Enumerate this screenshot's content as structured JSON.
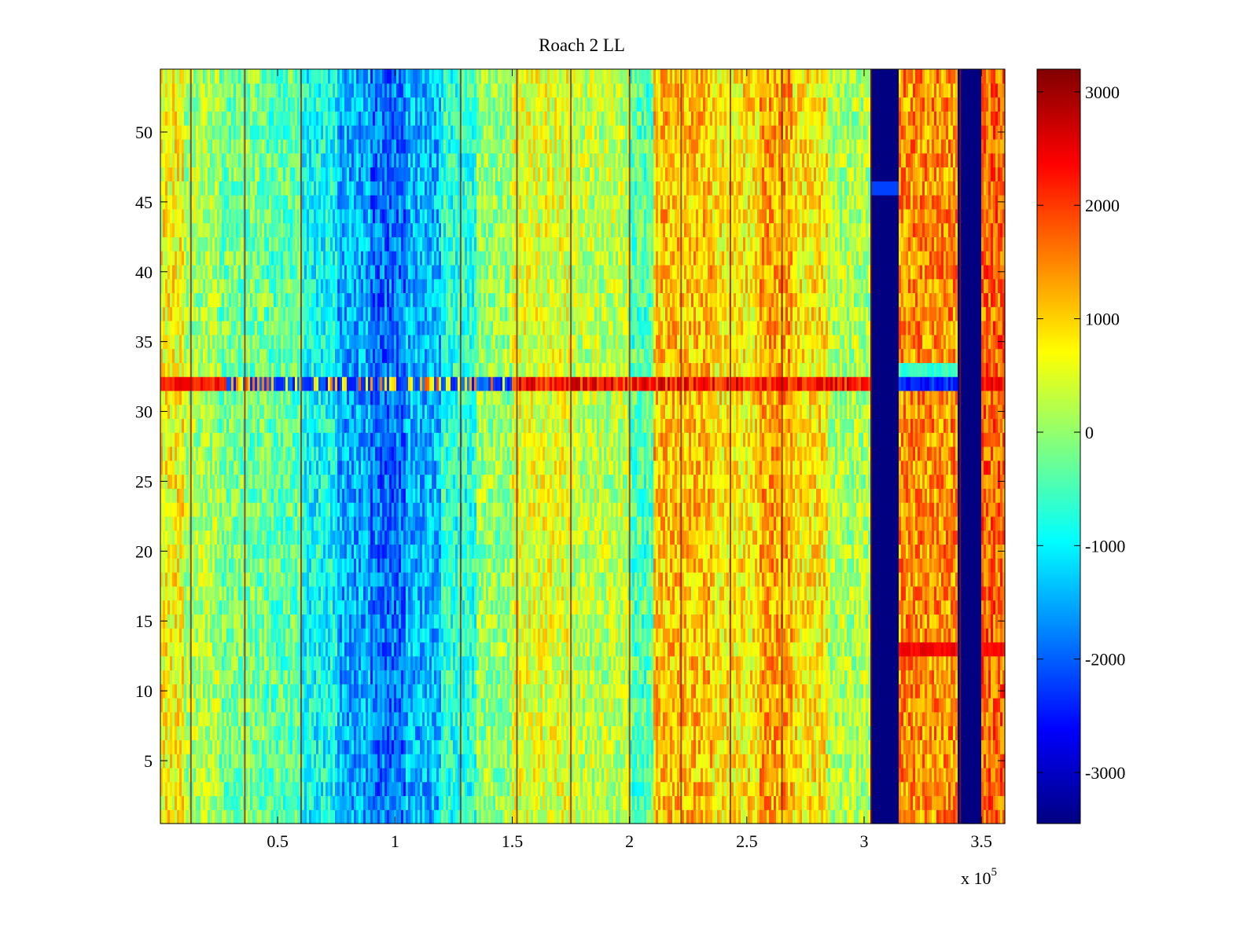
{
  "chart_data": {
    "type": "heatmap",
    "title": "Roach 2 LL",
    "xlabel": "",
    "ylabel": "",
    "x_range": [
      0,
      360000
    ],
    "y_range": [
      0.5,
      54.5
    ],
    "x_ticks": [
      50000,
      100000,
      150000,
      200000,
      250000,
      300000,
      350000
    ],
    "x_tick_labels": [
      "0.5",
      "1",
      "1.5",
      "2",
      "2.5",
      "3",
      "3.5"
    ],
    "x_exponent_label": {
      "base": "x 10",
      "exponent": "5"
    },
    "y_ticks": [
      5,
      10,
      15,
      20,
      25,
      30,
      35,
      40,
      45,
      50
    ],
    "y_tick_labels": [
      "5",
      "10",
      "15",
      "20",
      "25",
      "30",
      "35",
      "40",
      "45",
      "50"
    ],
    "colorbar": {
      "colormap": "jet",
      "range": [
        -3450,
        3200
      ],
      "ticks": [
        3000,
        2000,
        1000,
        0,
        -1000,
        -2000,
        -3000
      ],
      "tick_labels": [
        "3000",
        "2000",
        "1000",
        "0",
        "-1000",
        "-2000",
        "-3000"
      ]
    },
    "n_rows": 54,
    "column_profile": [
      {
        "x_start": 0,
        "x_end": 10000,
        "value": 700
      },
      {
        "x_start": 10000,
        "x_end": 25000,
        "value": 150
      },
      {
        "x_start": 25000,
        "x_end": 45000,
        "value": -200
      },
      {
        "x_start": 45000,
        "x_end": 60000,
        "value": -350
      },
      {
        "x_start": 60000,
        "x_end": 75000,
        "value": -900
      },
      {
        "x_start": 75000,
        "x_end": 90000,
        "value": -1500
      },
      {
        "x_start": 90000,
        "x_end": 105000,
        "value": -1900
      },
      {
        "x_start": 105000,
        "x_end": 120000,
        "value": -1400
      },
      {
        "x_start": 120000,
        "x_end": 135000,
        "value": -700
      },
      {
        "x_start": 135000,
        "x_end": 150000,
        "value": 0
      },
      {
        "x_start": 150000,
        "x_end": 175000,
        "value": 500
      },
      {
        "x_start": 175000,
        "x_end": 200000,
        "value": 250
      },
      {
        "x_start": 200000,
        "x_end": 210000,
        "value": -450
      },
      {
        "x_start": 210000,
        "x_end": 235000,
        "value": 1100
      },
      {
        "x_start": 235000,
        "x_end": 255000,
        "value": 800
      },
      {
        "x_start": 255000,
        "x_end": 270000,
        "value": 1300
      },
      {
        "x_start": 270000,
        "x_end": 285000,
        "value": 800
      },
      {
        "x_start": 285000,
        "x_end": 303000,
        "value": 150
      },
      {
        "x_start": 303000,
        "x_end": 315000,
        "value": -3450
      },
      {
        "x_start": 315000,
        "x_end": 340000,
        "value": 1450
      },
      {
        "x_start": 340000,
        "x_end": 350000,
        "value": -3450
      },
      {
        "x_start": 350000,
        "x_end": 360000,
        "value": 1700
      }
    ],
    "dark_stripes_x": [
      13000,
      36000,
      60000,
      128000,
      152000,
      175000,
      200000,
      222000,
      243000,
      265000,
      303000,
      341000
    ],
    "row_anomalies": [
      {
        "row": 32,
        "description": "bright mixed band across full width (red near 0, blue 30000-140000, dark red 150000-303000)"
      },
      {
        "row": 33,
        "description": "column 315000-340000 turns cyan"
      },
      {
        "row": 13,
        "description": "column 315000-340000 and 350000-360000 become orange-red"
      },
      {
        "row": 46,
        "description": "blue column 303000-315000 lighter"
      }
    ]
  }
}
